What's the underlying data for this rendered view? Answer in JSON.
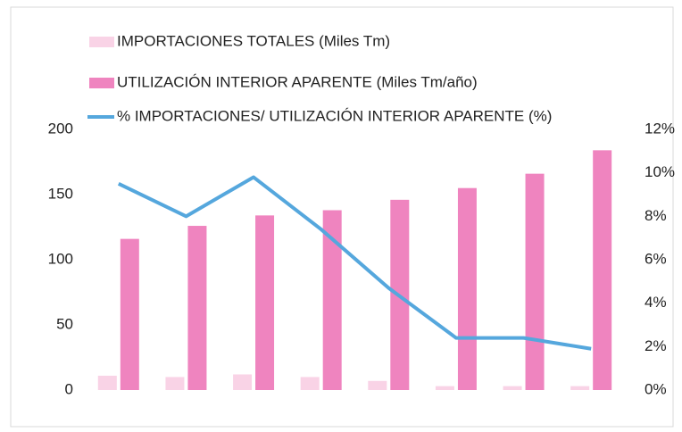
{
  "chart_data": {
    "type": "bar",
    "categories": [
      null,
      null,
      null,
      null,
      null,
      null,
      null,
      null
    ],
    "series": [
      {
        "name": "IMPORTACIONES TOTALES (Miles Tm)",
        "type": "bar",
        "color": "#f9d3e6",
        "values": [
          11,
          10,
          12,
          10,
          7,
          3,
          3,
          3
        ]
      },
      {
        "name": "UTILIZACIÓN INTERIOR APARENTE (Miles Tm/año)",
        "type": "bar",
        "color": "#ef84bf",
        "values": [
          116,
          126,
          134,
          138,
          146,
          155,
          166,
          184
        ]
      },
      {
        "name": "% IMPORTACIONES/ UTILIZACIÓN INTERIOR APARENTE (%)",
        "type": "line",
        "axis": "y2",
        "color": "#55a7dd",
        "values": [
          9.5,
          8.0,
          9.8,
          7.4,
          4.7,
          2.4,
          2.4,
          1.9
        ]
      }
    ],
    "ylim": [
      0,
      200
    ],
    "yticks": [
      0,
      50,
      100,
      150,
      200
    ],
    "y2lim": [
      0,
      12
    ],
    "y2ticks": [
      {
        "value": 0,
        "label": "0%"
      },
      {
        "value": 2,
        "label": "2%"
      },
      {
        "value": 4,
        "label": "4%"
      },
      {
        "value": 6,
        "label": "6%"
      },
      {
        "value": 8,
        "label": "8%"
      },
      {
        "value": 10,
        "label": "10%"
      },
      {
        "value": 12,
        "label": "12%"
      }
    ],
    "grid": false,
    "legend": "top"
  }
}
